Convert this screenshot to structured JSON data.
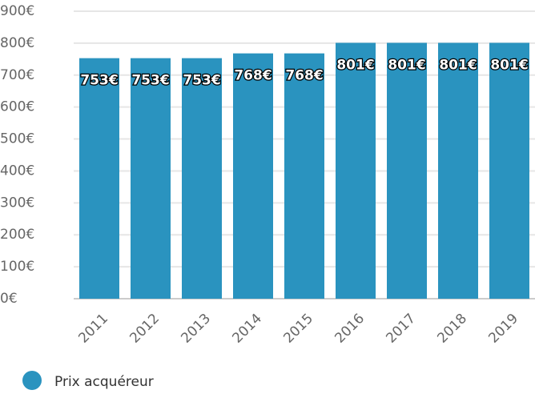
{
  "chart_data": {
    "type": "bar",
    "categories": [
      "2011",
      "2012",
      "2013",
      "2014",
      "2015",
      "2016",
      "2017",
      "2018",
      "2019"
    ],
    "series": [
      {
        "name": "Prix acquéreur",
        "color": "#2a93bf",
        "values": [
          753,
          753,
          753,
          768,
          768,
          801,
          801,
          801,
          801
        ],
        "value_labels": [
          "753€",
          "753€",
          "753€",
          "768€",
          "768€",
          "801€",
          "801€",
          "801€",
          "801€"
        ]
      }
    ],
    "ylim": [
      0,
      900
    ],
    "yticks": [
      {
        "value": 0,
        "label": "0€"
      },
      {
        "value": 100,
        "label": "100€"
      },
      {
        "value": 200,
        "label": "200€"
      },
      {
        "value": 300,
        "label": "300€"
      },
      {
        "value": 400,
        "label": "400€"
      },
      {
        "value": 500,
        "label": "500€"
      },
      {
        "value": 600,
        "label": "600€"
      },
      {
        "value": 700,
        "label": "700€"
      },
      {
        "value": 800,
        "label": "800€"
      },
      {
        "value": 900,
        "label": "900€"
      }
    ],
    "grid": true,
    "legend": "bottom-left"
  }
}
